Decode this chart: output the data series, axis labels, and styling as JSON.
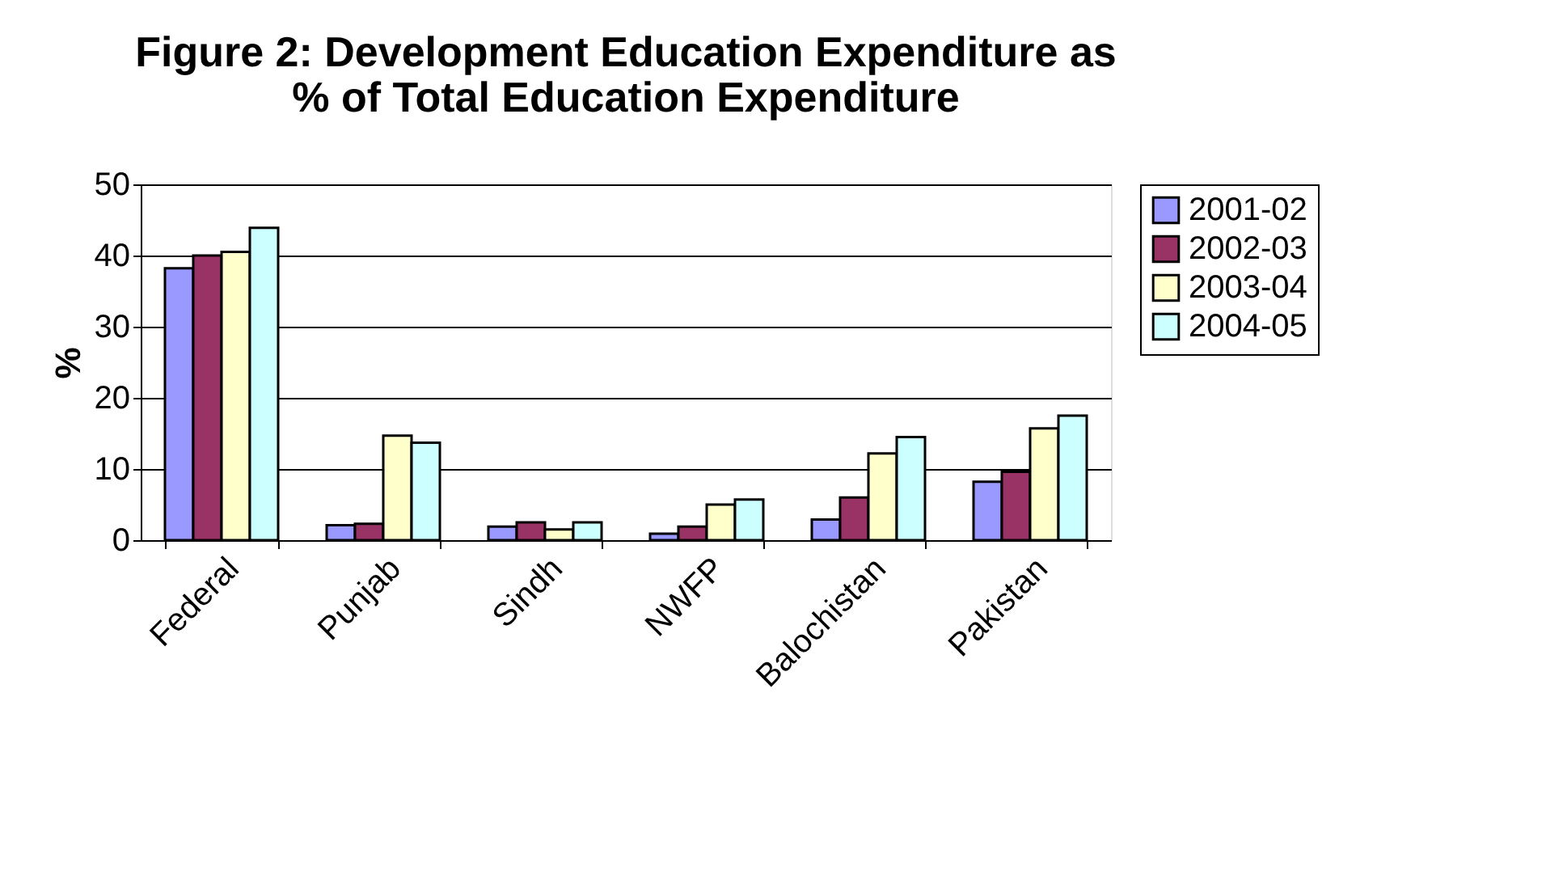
{
  "chart_data": {
    "type": "bar",
    "title": [
      "Figure 2: Development Education Expenditure as",
      "% of Total Education Expenditure"
    ],
    "ylabel": "%",
    "categories": [
      "Federal",
      "Punjab",
      "Sindh",
      "NWFP",
      "Balochistan",
      "Pakistan"
    ],
    "series": [
      {
        "name": "2001-02",
        "color": "#9999ff",
        "values": [
          38.2,
          2.1,
          1.9,
          0.9,
          2.9,
          8.2
        ]
      },
      {
        "name": "2002-03",
        "color": "#993366",
        "values": [
          40.0,
          2.3,
          2.5,
          1.9,
          6.0,
          9.6
        ]
      },
      {
        "name": "2003-04",
        "color": "#ffffcc",
        "values": [
          40.5,
          14.7,
          1.5,
          5.0,
          12.2,
          15.7
        ]
      },
      {
        "name": "2004-05",
        "color": "#ccffff",
        "values": [
          43.9,
          13.7,
          2.5,
          5.7,
          14.5,
          17.5
        ]
      }
    ],
    "ylim": [
      0,
      50
    ],
    "yticks": [
      0,
      10,
      20,
      30,
      40,
      50
    ],
    "grid": "y",
    "legend": "right"
  }
}
